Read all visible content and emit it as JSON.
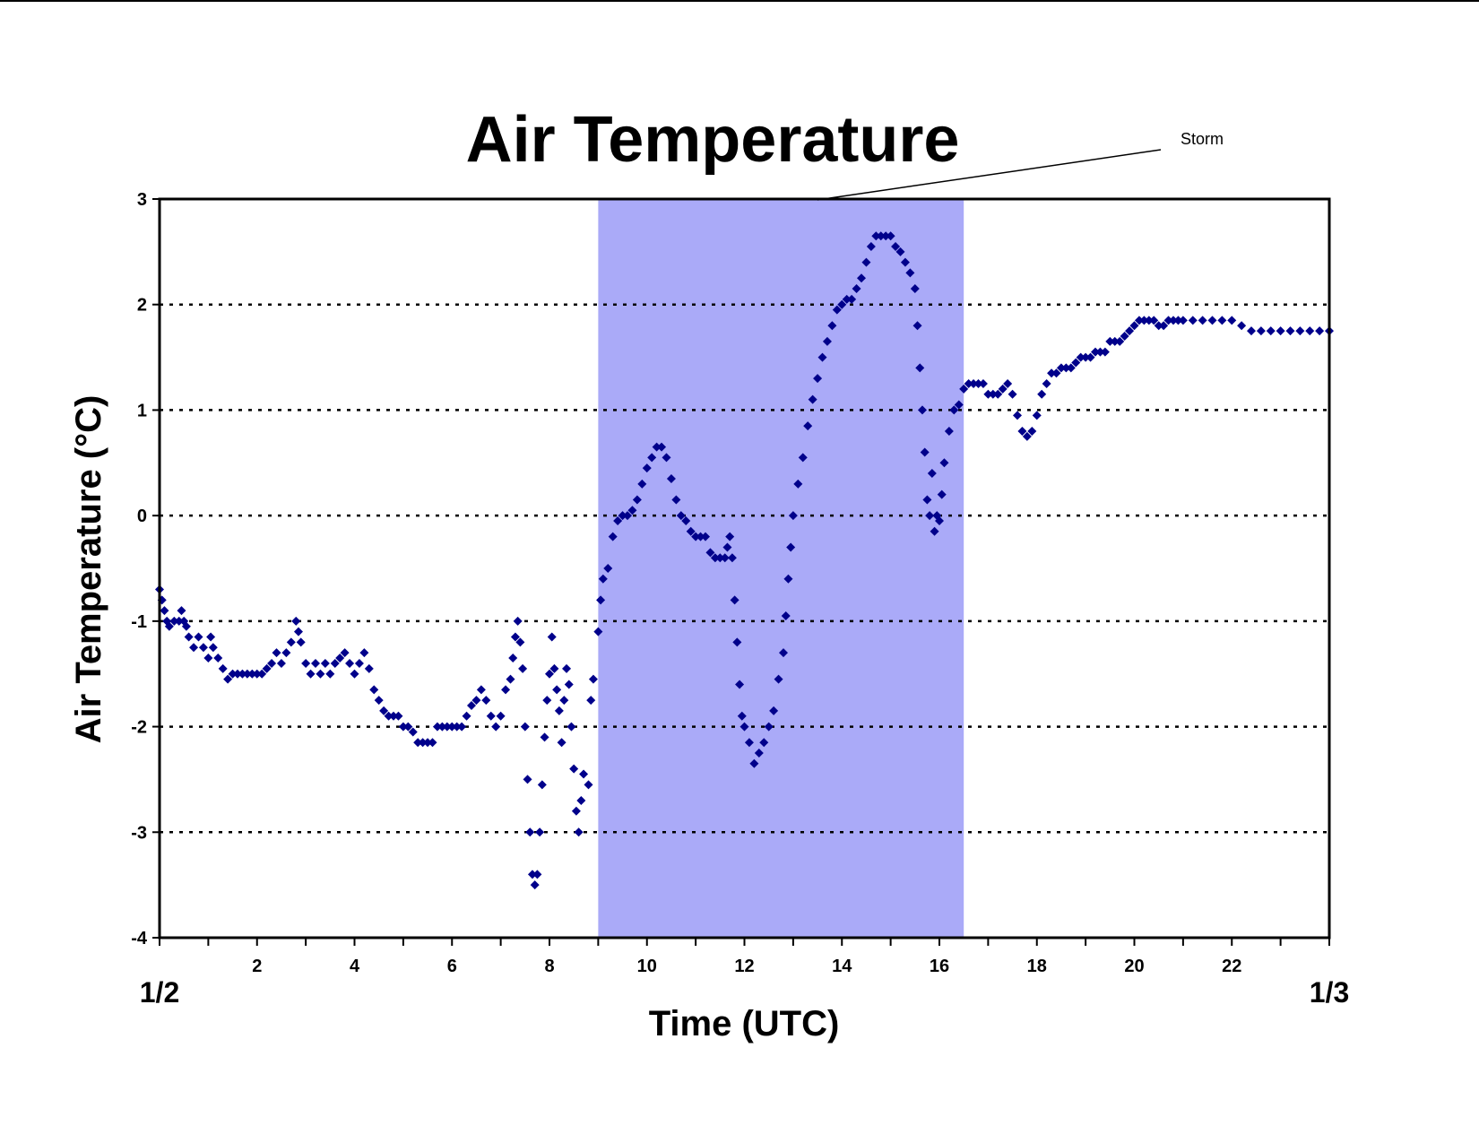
{
  "chart_data": {
    "type": "scatter",
    "title": "Air Temperature",
    "xlabel": "Time (UTC)",
    "ylabel": "Air Temperature (°C)",
    "xlim": [
      0,
      24
    ],
    "ylim": [
      -4,
      3
    ],
    "x_ticks": [
      2,
      4,
      6,
      8,
      10,
      12,
      14,
      16,
      18,
      20,
      22
    ],
    "y_ticks": [
      3,
      2,
      1,
      0,
      -1,
      -2,
      -3,
      -4
    ],
    "date_labels": {
      "start": "1/2",
      "end": "1/3"
    },
    "grid": "horizontal-dotted",
    "marker_color": "#00008B",
    "shaded_region": {
      "x_start": 9.0,
      "x_end": 16.5,
      "color": "#AAAAF8",
      "label": "Storm"
    },
    "series": [
      {
        "points": [
          [
            0.0,
            -0.7
          ],
          [
            0.05,
            -0.8
          ],
          [
            0.1,
            -0.9
          ],
          [
            0.15,
            -1.0
          ],
          [
            0.2,
            -1.05
          ],
          [
            0.3,
            -1.0
          ],
          [
            0.4,
            -1.0
          ],
          [
            0.45,
            -0.9
          ],
          [
            0.5,
            -1.0
          ],
          [
            0.55,
            -1.05
          ],
          [
            0.6,
            -1.15
          ],
          [
            0.7,
            -1.25
          ],
          [
            0.8,
            -1.15
          ],
          [
            0.9,
            -1.25
          ],
          [
            1.0,
            -1.35
          ],
          [
            1.05,
            -1.15
          ],
          [
            1.1,
            -1.25
          ],
          [
            1.2,
            -1.35
          ],
          [
            1.3,
            -1.45
          ],
          [
            1.4,
            -1.55
          ],
          [
            1.5,
            -1.5
          ],
          [
            1.6,
            -1.5
          ],
          [
            1.7,
            -1.5
          ],
          [
            1.8,
            -1.5
          ],
          [
            1.9,
            -1.5
          ],
          [
            2.0,
            -1.5
          ],
          [
            2.1,
            -1.5
          ],
          [
            2.2,
            -1.45
          ],
          [
            2.3,
            -1.4
          ],
          [
            2.4,
            -1.3
          ],
          [
            2.5,
            -1.4
          ],
          [
            2.6,
            -1.3
          ],
          [
            2.7,
            -1.2
          ],
          [
            2.8,
            -1.0
          ],
          [
            2.85,
            -1.1
          ],
          [
            2.9,
            -1.2
          ],
          [
            3.0,
            -1.4
          ],
          [
            3.1,
            -1.5
          ],
          [
            3.2,
            -1.4
          ],
          [
            3.3,
            -1.5
          ],
          [
            3.4,
            -1.4
          ],
          [
            3.5,
            -1.5
          ],
          [
            3.6,
            -1.4
          ],
          [
            3.7,
            -1.35
          ],
          [
            3.8,
            -1.3
          ],
          [
            3.9,
            -1.4
          ],
          [
            4.0,
            -1.5
          ],
          [
            4.1,
            -1.4
          ],
          [
            4.2,
            -1.3
          ],
          [
            4.3,
            -1.45
          ],
          [
            4.4,
            -1.65
          ],
          [
            4.5,
            -1.75
          ],
          [
            4.6,
            -1.85
          ],
          [
            4.7,
            -1.9
          ],
          [
            4.8,
            -1.9
          ],
          [
            4.9,
            -1.9
          ],
          [
            5.0,
            -2.0
          ],
          [
            5.1,
            -2.0
          ],
          [
            5.2,
            -2.05
          ],
          [
            5.3,
            -2.15
          ],
          [
            5.4,
            -2.15
          ],
          [
            5.5,
            -2.15
          ],
          [
            5.6,
            -2.15
          ],
          [
            5.7,
            -2.0
          ],
          [
            5.8,
            -2.0
          ],
          [
            5.9,
            -2.0
          ],
          [
            6.0,
            -2.0
          ],
          [
            6.1,
            -2.0
          ],
          [
            6.2,
            -2.0
          ],
          [
            6.3,
            -1.9
          ],
          [
            6.4,
            -1.8
          ],
          [
            6.5,
            -1.75
          ],
          [
            6.6,
            -1.65
          ],
          [
            6.7,
            -1.75
          ],
          [
            6.8,
            -1.9
          ],
          [
            6.9,
            -2.0
          ],
          [
            7.0,
            -1.9
          ],
          [
            7.1,
            -1.65
          ],
          [
            7.2,
            -1.55
          ],
          [
            7.25,
            -1.35
          ],
          [
            7.3,
            -1.15
          ],
          [
            7.35,
            -1.0
          ],
          [
            7.4,
            -1.2
          ],
          [
            7.45,
            -1.45
          ],
          [
            7.5,
            -2.0
          ],
          [
            7.55,
            -2.5
          ],
          [
            7.6,
            -3.0
          ],
          [
            7.65,
            -3.4
          ],
          [
            7.7,
            -3.5
          ],
          [
            7.75,
            -3.4
          ],
          [
            7.8,
            -3.0
          ],
          [
            7.85,
            -2.55
          ],
          [
            7.9,
            -2.1
          ],
          [
            7.95,
            -1.75
          ],
          [
            8.0,
            -1.5
          ],
          [
            8.05,
            -1.15
          ],
          [
            8.1,
            -1.45
          ],
          [
            8.15,
            -1.65
          ],
          [
            8.2,
            -1.85
          ],
          [
            8.25,
            -2.15
          ],
          [
            8.3,
            -1.75
          ],
          [
            8.35,
            -1.45
          ],
          [
            8.4,
            -1.6
          ],
          [
            8.45,
            -2.0
          ],
          [
            8.5,
            -2.4
          ],
          [
            8.55,
            -2.8
          ],
          [
            8.6,
            -3.0
          ],
          [
            8.65,
            -2.7
          ],
          [
            8.7,
            -2.45
          ],
          [
            8.8,
            -2.55
          ],
          [
            8.85,
            -1.75
          ],
          [
            8.9,
            -1.55
          ],
          [
            9.0,
            -1.1
          ],
          [
            9.05,
            -0.8
          ],
          [
            9.1,
            -0.6
          ],
          [
            9.2,
            -0.5
          ],
          [
            9.3,
            -0.2
          ],
          [
            9.4,
            -0.05
          ],
          [
            9.5,
            0.0
          ],
          [
            9.6,
            0.0
          ],
          [
            9.7,
            0.05
          ],
          [
            9.8,
            0.15
          ],
          [
            9.9,
            0.3
          ],
          [
            10.0,
            0.45
          ],
          [
            10.1,
            0.55
          ],
          [
            10.2,
            0.65
          ],
          [
            10.3,
            0.65
          ],
          [
            10.4,
            0.55
          ],
          [
            10.5,
            0.35
          ],
          [
            10.6,
            0.15
          ],
          [
            10.7,
            0.0
          ],
          [
            10.8,
            -0.05
          ],
          [
            10.9,
            -0.15
          ],
          [
            11.0,
            -0.2
          ],
          [
            11.1,
            -0.2
          ],
          [
            11.2,
            -0.2
          ],
          [
            11.3,
            -0.35
          ],
          [
            11.4,
            -0.4
          ],
          [
            11.5,
            -0.4
          ],
          [
            11.6,
            -0.4
          ],
          [
            11.65,
            -0.3
          ],
          [
            11.7,
            -0.2
          ],
          [
            11.75,
            -0.4
          ],
          [
            11.8,
            -0.8
          ],
          [
            11.85,
            -1.2
          ],
          [
            11.9,
            -1.6
          ],
          [
            11.95,
            -1.9
          ],
          [
            12.0,
            -2.0
          ],
          [
            12.1,
            -2.15
          ],
          [
            12.2,
            -2.35
          ],
          [
            12.3,
            -2.25
          ],
          [
            12.4,
            -2.15
          ],
          [
            12.5,
            -2.0
          ],
          [
            12.6,
            -1.85
          ],
          [
            12.7,
            -1.55
          ],
          [
            12.8,
            -1.3
          ],
          [
            12.85,
            -0.95
          ],
          [
            12.9,
            -0.6
          ],
          [
            12.95,
            -0.3
          ],
          [
            13.0,
            0.0
          ],
          [
            13.1,
            0.3
          ],
          [
            13.2,
            0.55
          ],
          [
            13.3,
            0.85
          ],
          [
            13.4,
            1.1
          ],
          [
            13.5,
            1.3
          ],
          [
            13.6,
            1.5
          ],
          [
            13.7,
            1.65
          ],
          [
            13.8,
            1.8
          ],
          [
            13.9,
            1.95
          ],
          [
            14.0,
            2.0
          ],
          [
            14.1,
            2.05
          ],
          [
            14.2,
            2.05
          ],
          [
            14.3,
            2.15
          ],
          [
            14.4,
            2.25
          ],
          [
            14.5,
            2.4
          ],
          [
            14.6,
            2.55
          ],
          [
            14.7,
            2.65
          ],
          [
            14.8,
            2.65
          ],
          [
            14.9,
            2.65
          ],
          [
            15.0,
            2.65
          ],
          [
            15.1,
            2.55
          ],
          [
            15.2,
            2.5
          ],
          [
            15.3,
            2.4
          ],
          [
            15.4,
            2.3
          ],
          [
            15.5,
            2.15
          ],
          [
            15.55,
            1.8
          ],
          [
            15.6,
            1.4
          ],
          [
            15.65,
            1.0
          ],
          [
            15.7,
            0.6
          ],
          [
            15.75,
            0.15
          ],
          [
            15.8,
            0.0
          ],
          [
            15.85,
            0.4
          ],
          [
            15.9,
            -0.15
          ],
          [
            15.95,
            0.0
          ],
          [
            16.0,
            -0.05
          ],
          [
            16.05,
            0.2
          ],
          [
            16.1,
            0.5
          ],
          [
            16.2,
            0.8
          ],
          [
            16.3,
            1.0
          ],
          [
            16.4,
            1.05
          ],
          [
            16.5,
            1.2
          ],
          [
            16.6,
            1.25
          ],
          [
            16.7,
            1.25
          ],
          [
            16.8,
            1.25
          ],
          [
            16.9,
            1.25
          ],
          [
            17.0,
            1.15
          ],
          [
            17.1,
            1.15
          ],
          [
            17.2,
            1.15
          ],
          [
            17.3,
            1.2
          ],
          [
            17.4,
            1.25
          ],
          [
            17.5,
            1.15
          ],
          [
            17.6,
            0.95
          ],
          [
            17.7,
            0.8
          ],
          [
            17.8,
            0.75
          ],
          [
            17.9,
            0.8
          ],
          [
            18.0,
            0.95
          ],
          [
            18.1,
            1.15
          ],
          [
            18.2,
            1.25
          ],
          [
            18.3,
            1.35
          ],
          [
            18.4,
            1.35
          ],
          [
            18.5,
            1.4
          ],
          [
            18.6,
            1.4
          ],
          [
            18.7,
            1.4
          ],
          [
            18.8,
            1.45
          ],
          [
            18.9,
            1.5
          ],
          [
            19.0,
            1.5
          ],
          [
            19.1,
            1.5
          ],
          [
            19.2,
            1.55
          ],
          [
            19.3,
            1.55
          ],
          [
            19.4,
            1.55
          ],
          [
            19.5,
            1.65
          ],
          [
            19.6,
            1.65
          ],
          [
            19.7,
            1.65
          ],
          [
            19.8,
            1.7
          ],
          [
            19.9,
            1.75
          ],
          [
            20.0,
            1.8
          ],
          [
            20.1,
            1.85
          ],
          [
            20.2,
            1.85
          ],
          [
            20.3,
            1.85
          ],
          [
            20.4,
            1.85
          ],
          [
            20.5,
            1.8
          ],
          [
            20.6,
            1.8
          ],
          [
            20.7,
            1.85
          ],
          [
            20.8,
            1.85
          ],
          [
            20.9,
            1.85
          ],
          [
            21.0,
            1.85
          ],
          [
            21.2,
            1.85
          ],
          [
            21.4,
            1.85
          ],
          [
            21.6,
            1.85
          ],
          [
            21.8,
            1.85
          ],
          [
            22.0,
            1.85
          ],
          [
            22.2,
            1.8
          ],
          [
            22.4,
            1.75
          ],
          [
            22.6,
            1.75
          ],
          [
            22.8,
            1.75
          ],
          [
            23.0,
            1.75
          ],
          [
            23.2,
            1.75
          ],
          [
            23.4,
            1.75
          ],
          [
            23.6,
            1.75
          ],
          [
            23.8,
            1.75
          ],
          [
            24.0,
            1.75
          ]
        ]
      }
    ]
  }
}
